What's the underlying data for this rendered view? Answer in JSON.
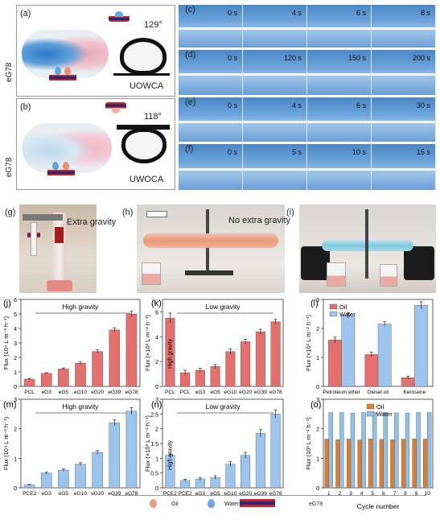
{
  "top": {
    "row_label": "eG78",
    "panel_a": {
      "label": "(a)",
      "angle": "129°",
      "caption": "UOWCA"
    },
    "panel_b": {
      "label": "(b)",
      "angle": "118°",
      "caption": "UWOCA"
    },
    "strips": [
      {
        "label": "(c)",
        "times": [
          "0 s",
          "4 s",
          "6 s",
          "8 s"
        ]
      },
      {
        "label": "(d)",
        "times": [
          "0 s",
          "120 s",
          "150 s",
          "200 s"
        ]
      },
      {
        "label": "(e)",
        "times": [
          "0 s",
          "4 s",
          "6 s",
          "30 s"
        ]
      },
      {
        "label": "(f)",
        "times": [
          "0 s",
          "5 s",
          "10 s",
          "15 s"
        ]
      }
    ]
  },
  "middle": {
    "g": {
      "label": "(g)",
      "annotation": "Extra gravity"
    },
    "h": {
      "label": "(h)",
      "annotation": "No extra gravity"
    },
    "i": {
      "label": "(i)"
    }
  },
  "legend": {
    "oil": "Oil",
    "water": "Water",
    "membrane": "eG78"
  },
  "colors": {
    "oil": "#e46f6c",
    "water": "#9cc4ec",
    "orange": "#e07d2c",
    "sky": "#8fc1ea"
  },
  "chart_data": [
    {
      "panel": "(j)",
      "type": "bar",
      "title": "High gravity",
      "ylabel": "Flux (10⁴ L m⁻² h⁻¹)",
      "categories": [
        "PCL",
        "eG3",
        "eG5",
        "eG10",
        "eG20",
        "eG39",
        "eG78"
      ],
      "values": [
        0.5,
        0.9,
        1.2,
        1.6,
        2.4,
        3.9,
        5.0
      ],
      "errors": [
        0.05,
        0.05,
        0.07,
        0.08,
        0.12,
        0.15,
        0.18
      ],
      "ylim": [
        0,
        6
      ],
      "yticks": [
        0,
        1,
        2,
        3,
        4,
        5,
        6
      ],
      "color": "#e46f6c"
    },
    {
      "panel": "(k)",
      "type": "bar",
      "title": "Low gravity",
      "ylabel": "Flux (×10³ L m⁻² h⁻¹)",
      "bar_text": "High gravity",
      "categories": [
        "PCL",
        "PCL",
        "eG3",
        "eG5",
        "eG10",
        "eG20",
        "eG39",
        "eG78"
      ],
      "values": [
        5.5,
        1.1,
        1.3,
        1.6,
        2.8,
        3.6,
        4.4,
        5.2
      ],
      "errors": [
        0.4,
        0.2,
        0.15,
        0.15,
        0.2,
        0.2,
        0.2,
        0.2
      ],
      "ylim": [
        0,
        7
      ],
      "yticks": [
        0,
        2,
        4,
        6
      ],
      "color": "#e46f6c"
    },
    {
      "panel": "(l)",
      "type": "bar",
      "ylabel": "Flux (×10³ L m⁻² h⁻¹)",
      "categories": [
        "Petroleum ether",
        "Diesel oil",
        "Kerosene"
      ],
      "series": [
        {
          "name": "Oil",
          "values": [
            1.6,
            1.1,
            0.3
          ],
          "errors": [
            0.1,
            0.08,
            0.05
          ],
          "color": "#e46f6c"
        },
        {
          "name": "Water",
          "values": [
            2.45,
            2.15,
            2.8
          ],
          "errors": [
            0.1,
            0.08,
            0.12
          ],
          "color": "#9cc4ec"
        }
      ],
      "ylim": [
        0,
        3
      ],
      "yticks": [
        0,
        1,
        2,
        3
      ],
      "legend": "top-left"
    },
    {
      "panel": "(m)",
      "type": "bar",
      "title": "High gravity",
      "ylabel": "Flux (10⁴ L m⁻² h⁻¹)",
      "categories": [
        "PCE2",
        "eG3",
        "eG5",
        "eG10",
        "eG20",
        "eG39",
        "eG78"
      ],
      "values": [
        0.1,
        0.5,
        0.6,
        0.8,
        1.2,
        2.2,
        2.6
      ],
      "errors": [
        0.02,
        0.04,
        0.04,
        0.05,
        0.06,
        0.1,
        0.12
      ],
      "ylim": [
        0,
        3
      ],
      "yticks": [
        0,
        1,
        2,
        3
      ],
      "color": "#9cc4ec"
    },
    {
      "panel": "(n)",
      "type": "bar",
      "title": "Low gravity",
      "ylabel": "Flux (×10³ L m⁻² h⁻¹)",
      "bar_text": "High gravity",
      "categories": [
        "PCE2",
        "PCE2",
        "eG3",
        "eG5",
        "eG10",
        "eG20",
        "eG39",
        "eG78"
      ],
      "values": [
        1.1,
        0.25,
        0.3,
        0.35,
        0.8,
        1.1,
        1.85,
        2.5
      ],
      "errors": [
        0.08,
        0.04,
        0.05,
        0.06,
        0.08,
        0.1,
        0.12,
        0.14
      ],
      "ylim": [
        0,
        3
      ],
      "yticks": [
        0.0,
        0.5,
        1.0,
        1.5,
        2.0,
        2.5,
        3.0
      ],
      "color": "#9cc4ec"
    },
    {
      "panel": "(o)",
      "type": "bar",
      "ylabel": "Flux (10³ L m⁻² h⁻¹)",
      "xlabel": "Cycle number",
      "categories": [
        "1",
        "2",
        "3",
        "4",
        "5",
        "6",
        "7",
        "8",
        "9",
        "10"
      ],
      "series": [
        {
          "name": "Oil",
          "values": [
            1.65,
            1.63,
            1.65,
            1.62,
            1.66,
            1.64,
            1.63,
            1.65,
            1.66,
            1.65
          ],
          "color": "#e07d2c"
        },
        {
          "name": "Water",
          "values": [
            2.55,
            2.55,
            2.53,
            2.55,
            2.54,
            2.55,
            2.54,
            2.53,
            2.55,
            2.55
          ],
          "color": "#8fc1ea"
        }
      ],
      "ylim": [
        0,
        3
      ],
      "yticks": [
        0,
        1,
        2,
        3
      ],
      "legend": "top-center"
    }
  ]
}
